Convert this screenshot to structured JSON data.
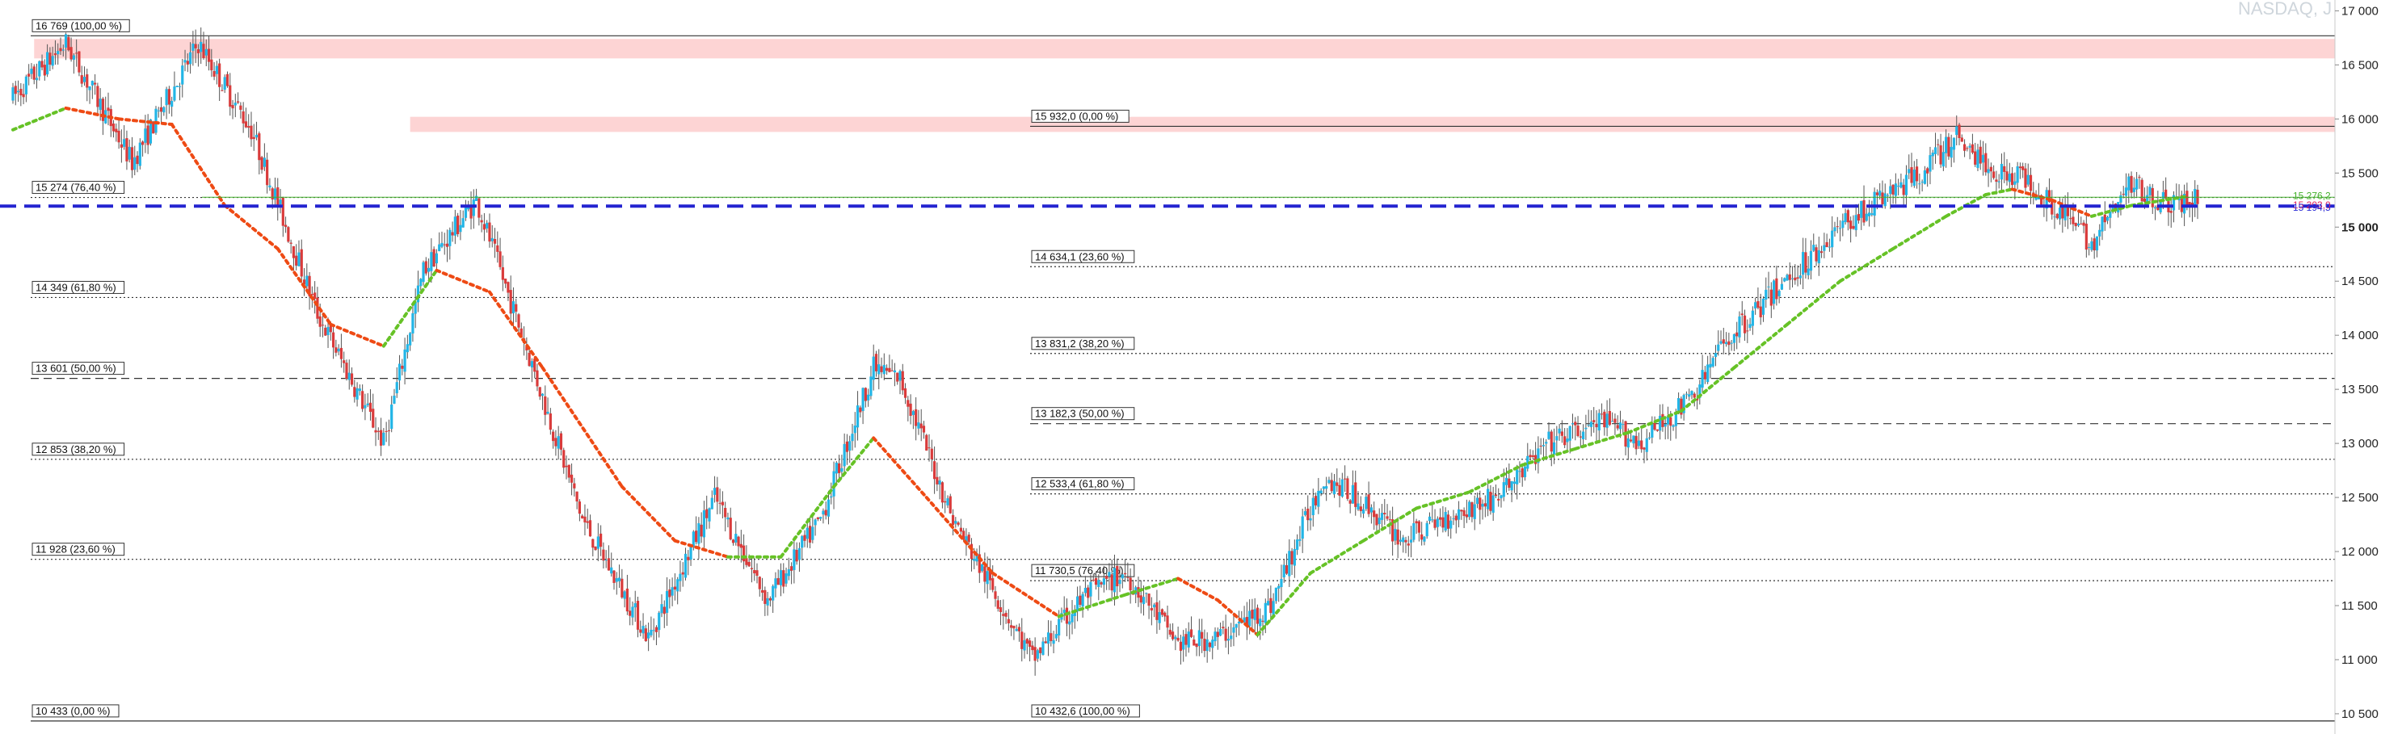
{
  "watermark": "NASDAQ, J",
  "chart_data": {
    "type": "candlestick",
    "symbol": "NASDAQ, J",
    "ylim": [
      10380,
      17100
    ],
    "y_ticks": [
      {
        "value": 17000,
        "label": "17 000"
      },
      {
        "value": 16500,
        "label": "16 500"
      },
      {
        "value": 16000,
        "label": "16 000"
      },
      {
        "value": 15500,
        "label": "15 500"
      },
      {
        "value": 15000,
        "label": "15 000"
      },
      {
        "value": 14500,
        "label": "14 500"
      },
      {
        "value": 14000,
        "label": "14 000"
      },
      {
        "value": 13500,
        "label": "13 500"
      },
      {
        "value": 13000,
        "label": "13 000"
      },
      {
        "value": 12500,
        "label": "12 500"
      },
      {
        "value": 12000,
        "label": "12 000"
      },
      {
        "value": 11500,
        "label": "11 500"
      },
      {
        "value": 11000,
        "label": "11 000"
      },
      {
        "value": 10500,
        "label": "10 500"
      }
    ],
    "price_tags": [
      {
        "value": 15276.2,
        "label": "15 276,2",
        "color": "#43b02a"
      },
      {
        "value": 15203.0,
        "label": "15 203,0",
        "color": "#e0245e"
      },
      {
        "value": 15194.5,
        "label": "15 194,5",
        "color": "#2a2ad6"
      }
    ],
    "key_level": {
      "value": 15194.5,
      "color": "#2424d0"
    },
    "resistance_zones": [
      {
        "from": 16560,
        "to": 16740
      },
      {
        "from": 15880,
        "to": 16020
      }
    ],
    "fib_sets": [
      {
        "anchor": "left",
        "levels": [
          {
            "value": 16769,
            "label": "16 769 (100,00 %)",
            "style": "solid"
          },
          {
            "value": 15274,
            "label": "15 274 (76,40 %)",
            "style": "dotted"
          },
          {
            "value": 14349,
            "label": "14 349 (61,80 %)",
            "style": "dotted"
          },
          {
            "value": 13601,
            "label": "13 601 (50,00 %)",
            "style": "dashed"
          },
          {
            "value": 12853,
            "label": "12 853 (38,20 %)",
            "style": "dotted"
          },
          {
            "value": 11928,
            "label": "11 928 (23,60 %)",
            "style": "dotted"
          },
          {
            "value": 10433,
            "label": "10 433 (0,00 %)",
            "style": "solid"
          }
        ]
      },
      {
        "anchor": "right",
        "levels": [
          {
            "value": 15932.0,
            "label": "15 932,0 (0,00 %)",
            "style": "solid"
          },
          {
            "value": 14634.1,
            "label": "14 634,1 (23,60 %)",
            "style": "dotted"
          },
          {
            "value": 13831.2,
            "label": "13 831,2 (38,20 %)",
            "style": "dotted"
          },
          {
            "value": 13182.3,
            "label": "13 182,3 (50,00 %)",
            "style": "dashed"
          },
          {
            "value": 12533.4,
            "label": "12 533,4 (61,80 %)",
            "style": "dotted"
          },
          {
            "value": 11730.5,
            "label": "11 730,5 (76,40 %)",
            "style": "dotted"
          },
          {
            "value": 10432.6,
            "label": "10 432,6 (100,00 %)",
            "style": "solid"
          }
        ]
      }
    ],
    "price_path": [
      [
        0,
        16200
      ],
      [
        20,
        16700
      ],
      [
        45,
        15600
      ],
      [
        70,
        16700
      ],
      [
        90,
        15900
      ],
      [
        115,
        14200
      ],
      [
        140,
        13000
      ],
      [
        155,
        14600
      ],
      [
        175,
        15250
      ],
      [
        195,
        13800
      ],
      [
        215,
        12300
      ],
      [
        240,
        11200
      ],
      [
        265,
        12500
      ],
      [
        285,
        11550
      ],
      [
        305,
        12300
      ],
      [
        325,
        13700
      ],
      [
        335,
        13600
      ],
      [
        355,
        12300
      ],
      [
        385,
        11000
      ],
      [
        405,
        11600
      ],
      [
        420,
        11800
      ],
      [
        440,
        11150
      ],
      [
        455,
        11200
      ],
      [
        475,
        11500
      ],
      [
        495,
        12700
      ],
      [
        510,
        12450
      ],
      [
        525,
        12100
      ],
      [
        540,
        12300
      ],
      [
        560,
        12500
      ],
      [
        580,
        13000
      ],
      [
        600,
        13200
      ],
      [
        615,
        13000
      ],
      [
        635,
        13450
      ],
      [
        645,
        13900
      ],
      [
        665,
        14400
      ],
      [
        690,
        15000
      ],
      [
        720,
        15500
      ],
      [
        735,
        15850
      ],
      [
        745,
        15550
      ],
      [
        760,
        15450
      ],
      [
        775,
        15100
      ],
      [
        785,
        14850
      ],
      [
        800,
        15400
      ],
      [
        815,
        15200
      ],
      [
        825,
        15250
      ]
    ],
    "moving_averages": [
      {
        "color_up": "#66c226",
        "color_down": "#ee4a14",
        "points": [
          [
            0,
            15900
          ],
          [
            20,
            16100
          ],
          [
            40,
            16000
          ],
          [
            60,
            15950
          ],
          [
            80,
            15200
          ],
          [
            100,
            14800
          ],
          [
            120,
            14100
          ],
          [
            140,
            13900
          ],
          [
            160,
            14600
          ],
          [
            180,
            14400
          ],
          [
            200,
            13700
          ],
          [
            230,
            12600
          ],
          [
            250,
            12100
          ],
          [
            270,
            11950
          ],
          [
            290,
            11950
          ],
          [
            310,
            12600
          ],
          [
            325,
            13050
          ],
          [
            345,
            12500
          ],
          [
            370,
            11800
          ],
          [
            395,
            11400
          ],
          [
            420,
            11600
          ],
          [
            440,
            11750
          ],
          [
            455,
            11550
          ],
          [
            470,
            11230
          ],
          [
            490,
            11800
          ],
          [
            510,
            12100
          ],
          [
            530,
            12400
          ],
          [
            550,
            12550
          ],
          [
            570,
            12800
          ],
          [
            590,
            12950
          ],
          [
            610,
            13100
          ],
          [
            630,
            13300
          ],
          [
            650,
            13700
          ],
          [
            670,
            14100
          ],
          [
            690,
            14500
          ],
          [
            710,
            14800
          ],
          [
            730,
            15100
          ],
          [
            745,
            15300
          ],
          [
            755,
            15350
          ],
          [
            770,
            15250
          ],
          [
            785,
            15100
          ],
          [
            800,
            15200
          ],
          [
            820,
            15280
          ]
        ]
      }
    ],
    "x_count": 826
  }
}
